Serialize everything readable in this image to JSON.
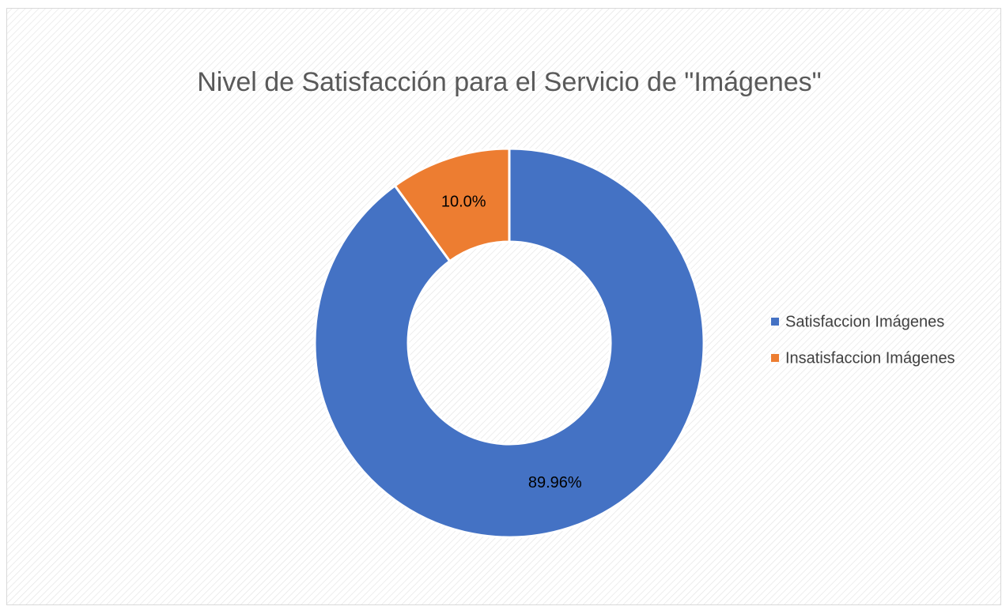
{
  "chart_data": {
    "type": "donut",
    "title": "Nivel de Satisfacción para el Servicio de \"Imágenes\"",
    "categories": [
      "Satisfaccion Imágenes",
      "Insatisfaccion Imágenes"
    ],
    "values": [
      89.96,
      10.0
    ],
    "value_labels": [
      "89.96%",
      "10.0%"
    ],
    "colors": [
      "#4472c4",
      "#ed7d31"
    ],
    "legend": "right"
  }
}
